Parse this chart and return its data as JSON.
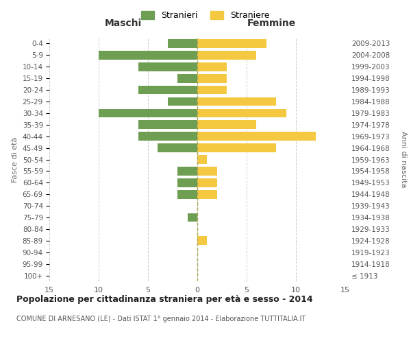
{
  "age_groups": [
    "100+",
    "95-99",
    "90-94",
    "85-89",
    "80-84",
    "75-79",
    "70-74",
    "65-69",
    "60-64",
    "55-59",
    "50-54",
    "45-49",
    "40-44",
    "35-39",
    "30-34",
    "25-29",
    "20-24",
    "15-19",
    "10-14",
    "5-9",
    "0-4"
  ],
  "birth_years": [
    "≤ 1913",
    "1914-1918",
    "1919-1923",
    "1924-1928",
    "1929-1933",
    "1934-1938",
    "1939-1943",
    "1944-1948",
    "1949-1953",
    "1954-1958",
    "1959-1963",
    "1964-1968",
    "1969-1973",
    "1974-1978",
    "1979-1983",
    "1984-1988",
    "1989-1993",
    "1994-1998",
    "1999-2003",
    "2004-2008",
    "2009-2013"
  ],
  "males": [
    0,
    0,
    0,
    0,
    0,
    1,
    0,
    2,
    2,
    2,
    0,
    4,
    6,
    6,
    10,
    3,
    6,
    2,
    6,
    10,
    3
  ],
  "females": [
    0,
    0,
    0,
    1,
    0,
    0,
    0,
    2,
    2,
    2,
    1,
    8,
    12,
    6,
    9,
    8,
    3,
    3,
    3,
    6,
    7
  ],
  "male_color": "#6e9e52",
  "female_color": "#f5c842",
  "male_label": "Stranieri",
  "female_label": "Straniere",
  "title": "Popolazione per cittadinanza straniera per età e sesso - 2014",
  "subtitle": "COMUNE DI ARNESANO (LE) - Dati ISTAT 1° gennaio 2014 - Elaborazione TUTTITALIA.IT",
  "maschi_label": "Maschi",
  "femmine_label": "Femmine",
  "ylabel_left": "Fasce di età",
  "ylabel_right": "Anni di nascita",
  "xlim": 15,
  "bg_color": "#ffffff",
  "grid_color": "#cccccc"
}
